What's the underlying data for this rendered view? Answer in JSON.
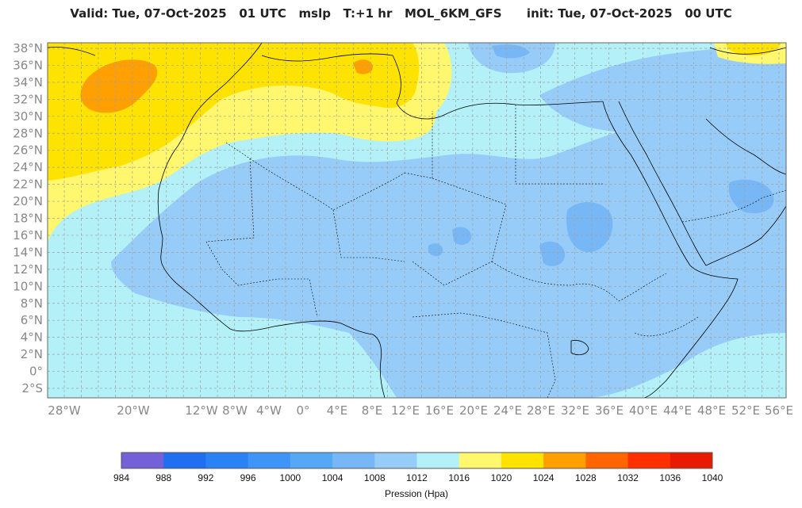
{
  "header": {
    "title": "Valid: Tue, 07-Oct-2025   01 UTC   mslp   T:+1 hr   MOL_6KM_GFS      init: Tue, 07-Oct-2025   00 UTC"
  },
  "map": {
    "lat_labels": [
      "38°N",
      "36°N",
      "34°N",
      "32°N",
      "30°N",
      "28°N",
      "26°N",
      "24°N",
      "22°N",
      "20°N",
      "18°N",
      "16°N",
      "14°N",
      "12°N",
      "10°N",
      "8°N",
      "6°N",
      "4°N",
      "2°N",
      "0°",
      "2°S"
    ],
    "lon_labels": [
      "28°W",
      "20°W",
      "12°W",
      "8°W",
      "4°W",
      "0°",
      "4°E",
      "8°E",
      "12°E",
      "16°E",
      "20°E",
      "24°E",
      "28°E",
      "32°E",
      "36°E",
      "40°E",
      "44°E",
      "48°E",
      "52°E",
      "56°E"
    ],
    "background_color": "#b3f0f7",
    "grid": true
  },
  "colorbar": {
    "title": "Pression (Hpa)",
    "ticks": [
      "984",
      "988",
      "992",
      "996",
      "1000",
      "1004",
      "1008",
      "1012",
      "1016",
      "1020",
      "1024",
      "1028",
      "1032",
      "1036",
      "1040"
    ],
    "colors": [
      "#7461d8",
      "#1f6ff0",
      "#2a82f5",
      "#3e95f7",
      "#55a8f5",
      "#78b7f6",
      "#97ccf8",
      "#b3f0f7",
      "#fff76e",
      "#ffe300",
      "#ffa000",
      "#ff6500",
      "#ff2f00",
      "#e81b00"
    ]
  }
}
